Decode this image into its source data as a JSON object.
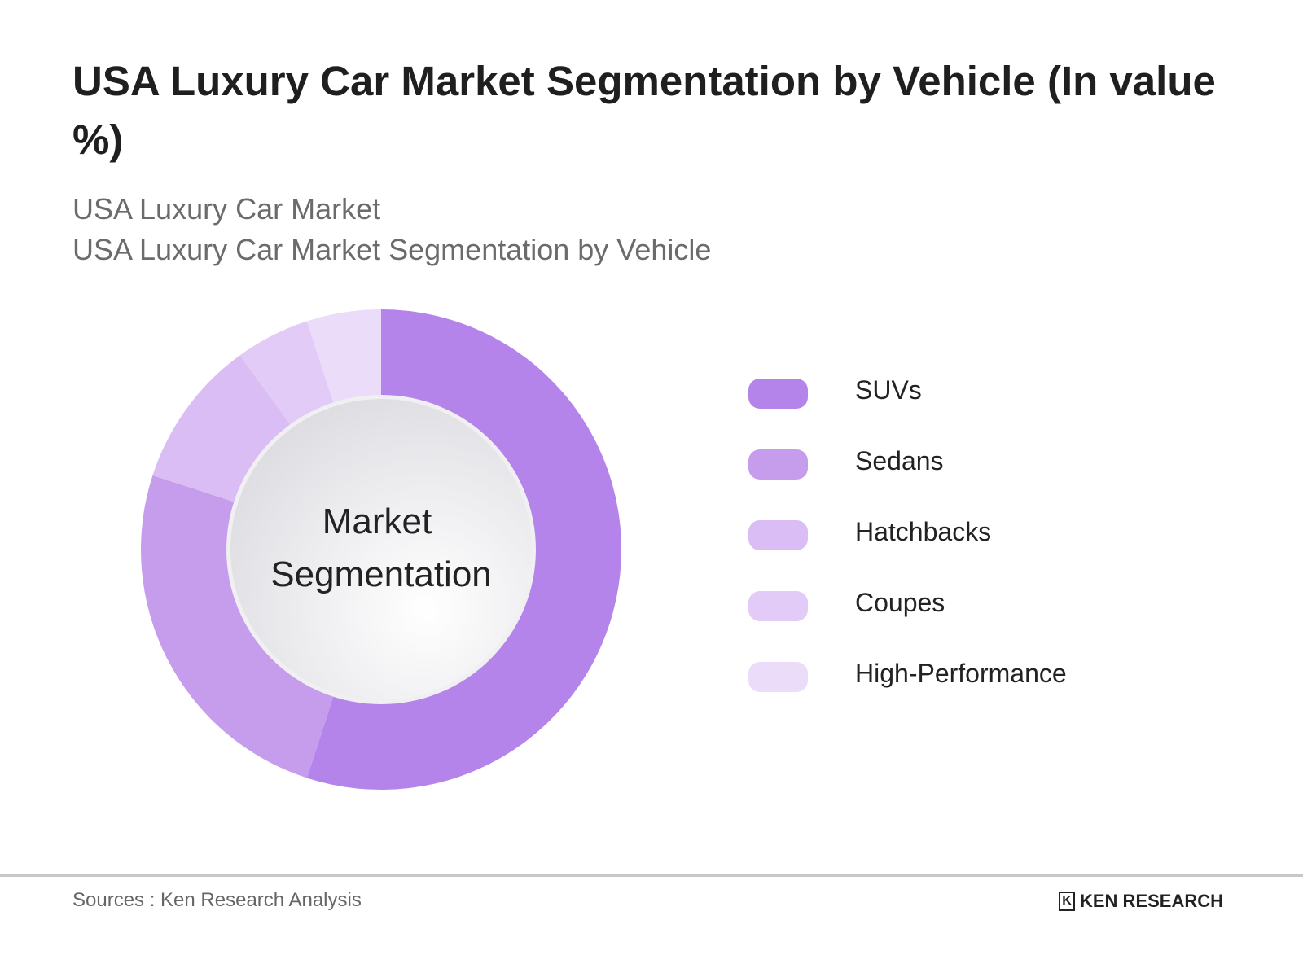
{
  "title": "USA Luxury Car Market Segmentation by Vehicle (In value %)",
  "subtitles": [
    "USA Luxury Car Market",
    "USA Luxury Car Market Segmentation by Vehicle"
  ],
  "chart_data": {
    "type": "pie",
    "variant": "donut",
    "center_label": [
      "Market",
      "Segmentation"
    ],
    "categories": [
      "SUVs",
      "Sedans",
      "Hatchbacks",
      "Coupes",
      "High-Performance"
    ],
    "values": [
      55,
      25,
      10,
      5,
      5
    ],
    "colors": [
      "#b584ea",
      "#c69ced",
      "#d9bdf4",
      "#e2cbf6",
      "#ebdcf9"
    ],
    "legend_position": "right"
  },
  "footer": {
    "source": "Sources : Ken Research Analysis",
    "logo": "KEN RESEARCH"
  }
}
